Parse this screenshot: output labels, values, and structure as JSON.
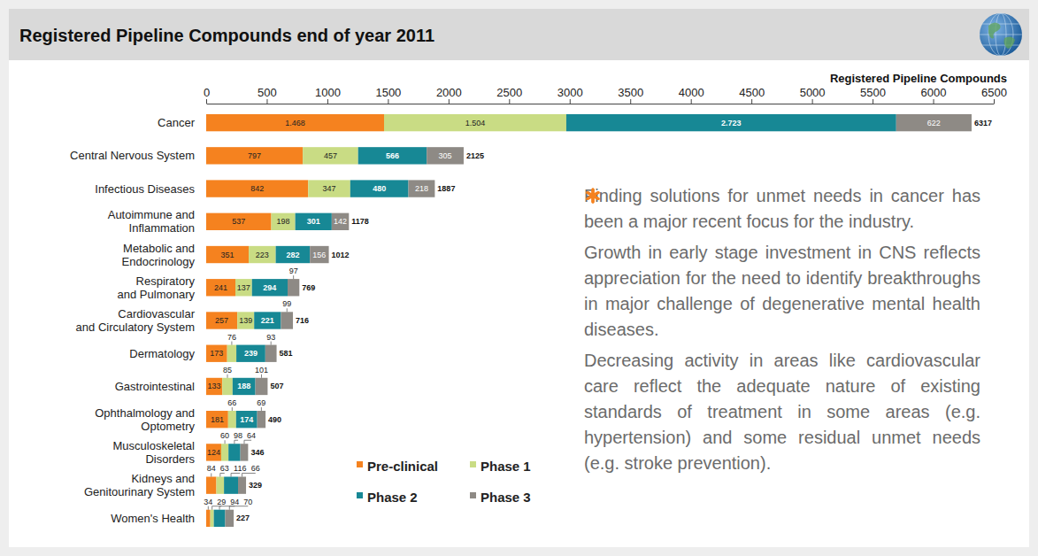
{
  "chart_data": {
    "type": "bar",
    "orientation": "horizontal",
    "stacked": true,
    "data_labels": true,
    "grid": false,
    "legend": "bottom",
    "title": "Registered Pipeline Compounds end of year 2011",
    "xlabel": "Registered Pipeline Compounds",
    "categories": [
      "Cancer",
      "Central Nervous System",
      "Infectious Diseases",
      "Autoimmune and\nInflammation",
      "Metabolic and\nEndocrinology",
      "Respiratory\nand Pulmonary",
      "Cardiovascular\nand Circulatory System",
      "Dermatology",
      "Gastrointestinal",
      "Ophthalmology and\nOptometry",
      "Musculoskeletal\nDisorders",
      "Kidneys and\nGenitourinary System",
      "Women's Health"
    ],
    "series": [
      {
        "name": "Pre-clinical",
        "color": "#f5821f",
        "values": [
          1468,
          797,
          842,
          537,
          351,
          241,
          257,
          173,
          133,
          181,
          124,
          84,
          34
        ],
        "value_labels": [
          "1.468",
          "797",
          "842",
          "537",
          "351",
          "241",
          "257",
          "173",
          "133",
          "181",
          "124",
          "84",
          "34"
        ]
      },
      {
        "name": "Phase 1",
        "color": "#c9dc84",
        "values": [
          1504,
          457,
          347,
          198,
          223,
          137,
          139,
          76,
          85,
          66,
          60,
          63,
          29
        ],
        "value_labels": [
          "1.504",
          "457",
          "347",
          "198",
          "223",
          "137",
          "139",
          "76",
          "85",
          "66",
          "60",
          "63",
          "29"
        ]
      },
      {
        "name": "Phase 2",
        "color": "#178895",
        "values": [
          2723,
          566,
          480,
          301,
          282,
          294,
          221,
          239,
          188,
          174,
          98,
          116,
          94
        ],
        "value_labels": [
          "2.723",
          "566",
          "480",
          "301",
          "282",
          "294",
          "221",
          "239",
          "188",
          "174",
          "98",
          "116",
          "94"
        ]
      },
      {
        "name": "Phase 3",
        "color": "#8e8a85",
        "values": [
          622,
          305,
          218,
          142,
          156,
          97,
          99,
          93,
          101,
          69,
          64,
          66,
          70
        ],
        "value_labels": [
          "622",
          "305",
          "218",
          "142",
          "156",
          "97",
          "99",
          "93",
          "101",
          "69",
          "64",
          "66",
          "70"
        ]
      }
    ],
    "totals": [
      6317,
      2125,
      1887,
      1178,
      1012,
      769,
      716,
      581,
      507,
      490,
      346,
      329,
      227
    ],
    "xlim": [
      0,
      6500
    ],
    "xticks": [
      0,
      500,
      1000,
      1500,
      2000,
      2500,
      3000,
      3500,
      4000,
      4500,
      5000,
      5500,
      6000,
      6500
    ],
    "annotations": [
      "Finding solutions for unmet needs in cancer has been a major recent focus for the industry.",
      "Growth in early stage investment in CNS reflects appreciation for the need to identify breakthroughs in major challenge of degenerative mental health diseases.",
      "Decreasing activity in areas like cardiovascular care reflect the adequate nature of existing standards of treatment in some areas (e.g. hypertension) and some residual unmet needs (e.g. stroke prevention)."
    ]
  }
}
